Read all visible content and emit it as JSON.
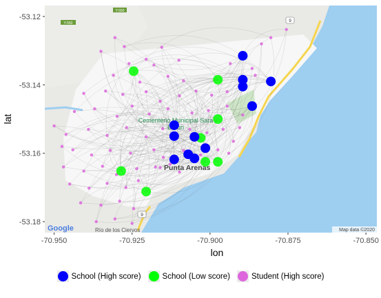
{
  "chart_data": {
    "type": "scatter",
    "xlabel": "lon",
    "ylabel": "lat",
    "xlim": [
      -70.953,
      -70.8465
    ],
    "ylim": [
      -53.1832,
      -53.1168
    ],
    "xticks": [
      -70.95,
      -70.925,
      -70.9,
      -70.875,
      -70.85
    ],
    "xtick_labels": [
      "-70.950",
      "-70.925",
      "-70.900",
      "-70.875",
      "-70.850"
    ],
    "yticks": [
      -53.12,
      -53.14,
      -53.16,
      -53.18
    ],
    "ytick_labels": [
      "-53.12",
      "-53.14",
      "-53.16",
      "-53.18"
    ],
    "legend_position": "bottom",
    "basemap": {
      "place_labels": [
        "Punta Arenas",
        "Cementerio Municipal Sara Braun",
        "Río de los Ciervos"
      ],
      "road_badges": [
        "Y-550",
        "Y-550",
        "9",
        "9"
      ],
      "attribution": "Map data ©2020",
      "logo": "Google"
    },
    "series": [
      {
        "name": "School (High score)",
        "color": "#0000ff",
        "points": [
          {
            "lon": -70.8895,
            "lat": -53.1315
          },
          {
            "lon": -70.8895,
            "lat": -53.1385
          },
          {
            "lon": -70.8895,
            "lat": -53.1405
          },
          {
            "lon": -70.8805,
            "lat": -53.139
          },
          {
            "lon": -70.8865,
            "lat": -53.1462
          },
          {
            "lon": -70.9115,
            "lat": -53.1518
          },
          {
            "lon": -70.9115,
            "lat": -53.155
          },
          {
            "lon": -70.905,
            "lat": -53.1552
          },
          {
            "lon": -70.9015,
            "lat": -53.1585
          },
          {
            "lon": -70.907,
            "lat": -53.1603
          },
          {
            "lon": -70.905,
            "lat": -53.1615
          },
          {
            "lon": -70.9115,
            "lat": -53.1618
          }
        ]
      },
      {
        "name": "School (Low score)",
        "color": "#00ff00",
        "points": [
          {
            "lon": -70.9245,
            "lat": -53.136
          },
          {
            "lon": -70.8975,
            "lat": -53.1385
          },
          {
            "lon": -70.8975,
            "lat": -53.15
          },
          {
            "lon": -70.903,
            "lat": -53.1555
          },
          {
            "lon": -70.9015,
            "lat": -53.1625
          },
          {
            "lon": -70.8975,
            "lat": -53.1625
          },
          {
            "lon": -70.9285,
            "lat": -53.1652
          },
          {
            "lon": -70.9205,
            "lat": -53.1712
          }
        ]
      },
      {
        "name": "Student (High score)",
        "color": "#dd66dd",
        "points": [
          {
            "lon": -70.9305,
            "lat": -53.1262
          },
          {
            "lon": -70.9275,
            "lat": -53.1288
          },
          {
            "lon": -70.935,
            "lat": -53.1302
          },
          {
            "lon": -70.9155,
            "lat": -53.129
          },
          {
            "lon": -70.9205,
            "lat": -53.1325
          },
          {
            "lon": -70.918,
            "lat": -53.1342
          },
          {
            "lon": -70.926,
            "lat": -53.1338
          },
          {
            "lon": -70.931,
            "lat": -53.1372
          },
          {
            "lon": -70.9135,
            "lat": -53.1375
          },
          {
            "lon": -70.9225,
            "lat": -53.1392
          },
          {
            "lon": -70.9085,
            "lat": -53.1388
          },
          {
            "lon": -70.91,
            "lat": -53.1328
          },
          {
            "lon": -70.9405,
            "lat": -53.1425
          },
          {
            "lon": -70.9335,
            "lat": -53.1418
          },
          {
            "lon": -70.928,
            "lat": -53.1428
          },
          {
            "lon": -70.9205,
            "lat": -53.142
          },
          {
            "lon": -70.916,
            "lat": -53.1448
          },
          {
            "lon": -70.9098,
            "lat": -53.1432
          },
          {
            "lon": -70.9045,
            "lat": -53.1418
          },
          {
            "lon": -70.8995,
            "lat": -53.143
          },
          {
            "lon": -70.8945,
            "lat": -53.142
          },
          {
            "lon": -70.8935,
            "lat": -53.1338
          },
          {
            "lon": -70.8865,
            "lat": -53.1352
          },
          {
            "lon": -70.8835,
            "lat": -53.128
          },
          {
            "lon": -70.8805,
            "lat": -53.1262
          },
          {
            "lon": -70.8755,
            "lat": -53.1238
          },
          {
            "lon": -70.8855,
            "lat": -53.1372
          },
          {
            "lon": -70.9435,
            "lat": -53.1478
          },
          {
            "lon": -70.937,
            "lat": -53.147
          },
          {
            "lon": -70.9298,
            "lat": -53.1492
          },
          {
            "lon": -70.925,
            "lat": -53.1462
          },
          {
            "lon": -70.9195,
            "lat": -53.1485
          },
          {
            "lon": -70.9135,
            "lat": -53.147
          },
          {
            "lon": -70.9058,
            "lat": -53.1482
          },
          {
            "lon": -70.9005,
            "lat": -53.1475
          },
          {
            "lon": -70.8945,
            "lat": -53.1462
          },
          {
            "lon": -70.8895,
            "lat": -53.1488
          },
          {
            "lon": -70.8905,
            "lat": -53.1525
          },
          {
            "lon": -70.95,
            "lat": -53.152
          },
          {
            "lon": -70.9462,
            "lat": -53.1545
          },
          {
            "lon": -70.939,
            "lat": -53.153
          },
          {
            "lon": -70.933,
            "lat": -53.1548
          },
          {
            "lon": -70.9268,
            "lat": -53.1525
          },
          {
            "lon": -70.9205,
            "lat": -53.1552
          },
          {
            "lon": -70.9152,
            "lat": -53.1528
          },
          {
            "lon": -70.9065,
            "lat": -53.153
          },
          {
            "lon": -70.901,
            "lat": -53.154
          },
          {
            "lon": -70.8958,
            "lat": -53.153
          },
          {
            "lon": -70.8925,
            "lat": -53.1565
          },
          {
            "lon": -70.944,
            "lat": -53.159
          },
          {
            "lon": -70.938,
            "lat": -53.1605
          },
          {
            "lon": -70.932,
            "lat": -53.1592
          },
          {
            "lon": -70.9255,
            "lat": -53.16
          },
          {
            "lon": -70.918,
            "lat": -53.159
          },
          {
            "lon": -70.915,
            "lat": -53.1612
          },
          {
            "lon": -70.9085,
            "lat": -53.1592
          },
          {
            "lon": -70.903,
            "lat": -53.1605
          },
          {
            "lon": -70.8975,
            "lat": -53.159
          },
          {
            "lon": -70.894,
            "lat": -53.16
          },
          {
            "lon": -70.947,
            "lat": -53.164
          },
          {
            "lon": -70.9405,
            "lat": -53.1652
          },
          {
            "lon": -70.9345,
            "lat": -53.1638
          },
          {
            "lon": -70.93,
            "lat": -53.1662
          },
          {
            "lon": -70.9235,
            "lat": -53.1645
          },
          {
            "lon": -70.9175,
            "lat": -53.164
          },
          {
            "lon": -70.916,
            "lat": -53.1642
          },
          {
            "lon": -70.9128,
            "lat": -53.1632
          },
          {
            "lon": -70.9098,
            "lat": -53.1655
          },
          {
            "lon": -70.945,
            "lat": -53.169
          },
          {
            "lon": -70.9388,
            "lat": -53.1702
          },
          {
            "lon": -70.933,
            "lat": -53.1688
          },
          {
            "lon": -70.927,
            "lat": -53.17
          },
          {
            "lon": -70.923,
            "lat": -53.168
          },
          {
            "lon": -70.9415,
            "lat": -53.1745
          },
          {
            "lon": -70.935,
            "lat": -53.1752
          },
          {
            "lon": -70.929,
            "lat": -53.174
          },
          {
            "lon": -70.9245,
            "lat": -53.1762
          },
          {
            "lon": -70.9365,
            "lat": -53.18
          },
          {
            "lon": -70.9305,
            "lat": -53.1792
          },
          {
            "lon": -70.925,
            "lat": -53.1805
          },
          {
            "lon": -70.9475,
            "lat": -53.158
          }
        ]
      }
    ]
  }
}
